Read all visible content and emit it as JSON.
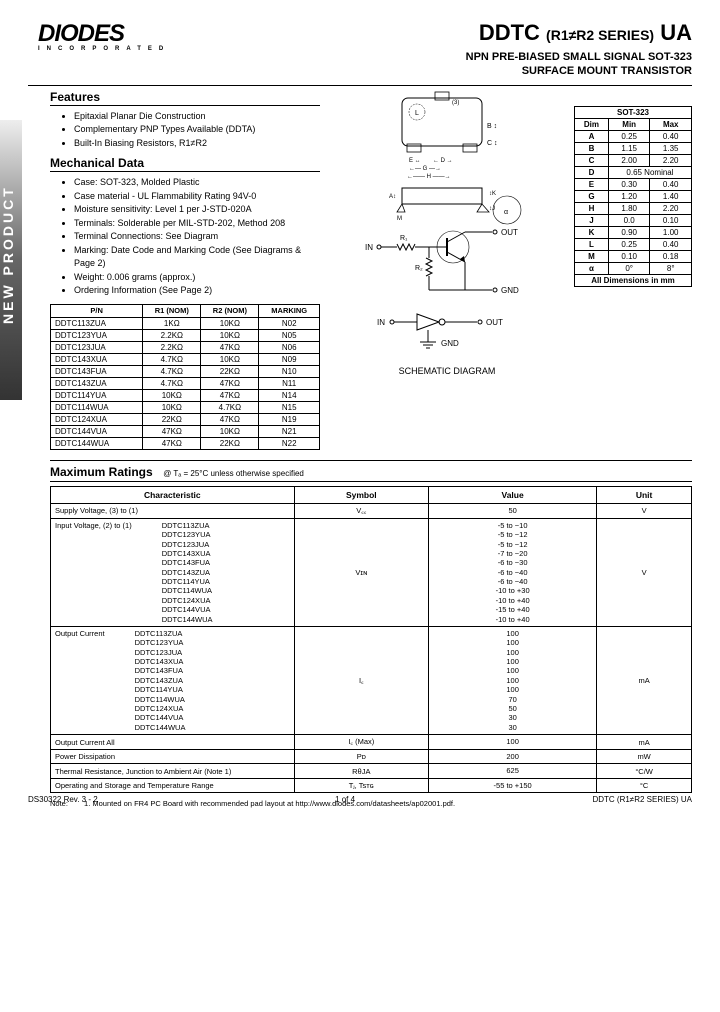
{
  "sidebar_label": "NEW PRODUCT",
  "logo": {
    "main": "DIODES",
    "sub": "INCORPORATED"
  },
  "title": {
    "main_pre": "DDTC",
    "main_mid": "(R1≠R2 SERIES)",
    "main_post": "UA",
    "sub1": "NPN PRE-BIASED SMALL SIGNAL SOT-323",
    "sub2": "SURFACE MOUNT TRANSISTOR"
  },
  "features": {
    "heading": "Features",
    "items": [
      "Epitaxial Planar Die Construction",
      "Complementary PNP Types Available (DDTA)",
      "Built-In Biasing Resistors, R1≠R2"
    ]
  },
  "mechanical": {
    "heading": "Mechanical Data",
    "items": [
      "Case: SOT-323, Molded Plastic",
      "Case material - UL Flammability Rating 94V-0",
      "Moisture sensitivity:  Level 1 per J-STD-020A",
      "Terminals: Solderable per MIL-STD-202, Method 208",
      "Terminal Connections: See Diagram",
      "Marking: Date Code and Marking Code (See Diagrams & Page 2)",
      "Weight: 0.006 grams (approx.)",
      "Ordering Information (See Page 2)"
    ]
  },
  "pn_table": {
    "headers": [
      "P/N",
      "R1 (NOM)",
      "R2 (NOM)",
      "MARKING"
    ],
    "rows": [
      [
        "DDTC113ZUA",
        "1KΩ",
        "10KΩ",
        "N02"
      ],
      [
        "DDTC123YUA",
        "2.2KΩ",
        "10KΩ",
        "N05"
      ],
      [
        "DDTC123JUA",
        "2.2KΩ",
        "47KΩ",
        "N06"
      ],
      [
        "DDTC143XUA",
        "4.7KΩ",
        "10KΩ",
        "N09"
      ],
      [
        "DDTC143FUA",
        "4.7KΩ",
        "22KΩ",
        "N10"
      ],
      [
        "DDTC143ZUA",
        "4.7KΩ",
        "47KΩ",
        "N11"
      ],
      [
        "DDTC114YUA",
        "10KΩ",
        "47KΩ",
        "N14"
      ],
      [
        "DDTC114WUA",
        "10KΩ",
        "4.7KΩ",
        "N15"
      ],
      [
        "DDTC124XUA",
        "22KΩ",
        "47KΩ",
        "N19"
      ],
      [
        "DDTC144VUA",
        "47KΩ",
        "10KΩ",
        "N21"
      ],
      [
        "DDTC144WUA",
        "47KΩ",
        "22KΩ",
        "N22"
      ]
    ]
  },
  "dim_table": {
    "title": "SOT-323",
    "headers": [
      "Dim",
      "Min",
      "Max"
    ],
    "rows": [
      [
        "A",
        "0.25",
        "0.40"
      ],
      [
        "B",
        "1.15",
        "1.35"
      ],
      [
        "C",
        "2.00",
        "2.20"
      ],
      [
        "D",
        "0.65 Nominal",
        ""
      ],
      [
        "E",
        "0.30",
        "0.40"
      ],
      [
        "G",
        "1.20",
        "1.40"
      ],
      [
        "H",
        "1.80",
        "2.20"
      ],
      [
        "J",
        "0.0",
        "0.10"
      ],
      [
        "K",
        "0.90",
        "1.00"
      ],
      [
        "L",
        "0.25",
        "0.40"
      ],
      [
        "M",
        "0.10",
        "0.18"
      ],
      [
        "α",
        "0°",
        "8°"
      ]
    ],
    "footer": "All Dimensions in mm"
  },
  "schematic": {
    "in": "IN",
    "out": "OUT",
    "gnd": "GND",
    "r1": "R₁",
    "r2": "R₂",
    "label": "SCHEMATIC DIAGRAM"
  },
  "ratings": {
    "heading": "Maximum Ratings",
    "note": "@ Tₐ = 25°C unless otherwise specified",
    "headers": [
      "Characteristic",
      "Symbol",
      "Value",
      "Unit"
    ],
    "rows": [
      {
        "char": "Supply Voltage, (3) to (1)",
        "parts": [],
        "symbol": "V꜀꜀",
        "values": [
          "50"
        ],
        "unit": "V"
      },
      {
        "char": "Input Voltage, (2) to (1)",
        "parts": [
          "DDTC113ZUA",
          "DDTC123YUA",
          "DDTC123JUA",
          "DDTC143XUA",
          "DDTC143FUA",
          "DDTC143ZUA",
          "DDTC114YUA",
          "DDTC114WUA",
          "DDTC124XUA",
          "DDTC144VUA",
          "DDTC144WUA"
        ],
        "symbol": "Vɪɴ",
        "values": [
          "-5 to −10",
          "-5 to −12",
          "-5 to −12",
          "-7 to −20",
          "-6 to −30",
          "-6 to −40",
          "-6 to −40",
          "-10 to +30",
          "-10 to +40",
          "-15 to +40",
          "-10 to +40"
        ],
        "unit": "V"
      },
      {
        "char": "Output Current",
        "parts": [
          "DDTC113ZUA",
          "DDTC123YUA",
          "DDTC123JUA",
          "DDTC143XUA",
          "DDTC143FUA",
          "DDTC143ZUA",
          "DDTC114YUA",
          "DDTC114WUA",
          "DDTC124XUA",
          "DDTC144VUA",
          "DDTC144WUA"
        ],
        "symbol": "I꜀",
        "values": [
          "100",
          "100",
          "100",
          "100",
          "100",
          "100",
          "100",
          "70",
          "50",
          "30",
          "30"
        ],
        "unit": "mA"
      },
      {
        "char": "Output Current                                    All",
        "parts": [],
        "symbol": "I꜀ (Max)",
        "values": [
          "100"
        ],
        "unit": "mA"
      },
      {
        "char": "Power Dissipation",
        "parts": [],
        "symbol": "Pᴅ",
        "values": [
          "200"
        ],
        "unit": "mW"
      },
      {
        "char": "Thermal Resistance, Junction to Ambient Air (Note 1)",
        "parts": [],
        "symbol": "RθJA",
        "values": [
          "625"
        ],
        "unit": "°C/W"
      },
      {
        "char": "Operating and Storage and Temperature Range",
        "parts": [],
        "symbol": "Tⱼ, Tsᴛɢ",
        "values": [
          "-55 to +150"
        ],
        "unit": "°C"
      }
    ]
  },
  "footnote": {
    "label": "Note:",
    "text": "1.   Mounted on FR4 PC Board with recommended pad layout at http://www.diodes.com/datasheets/ap02001.pdf."
  },
  "footer": {
    "left": "DS30322 Rev. 3 - 2",
    "mid": "1 of 4",
    "right": "DDTC (R1≠R2 SERIES) UA"
  }
}
